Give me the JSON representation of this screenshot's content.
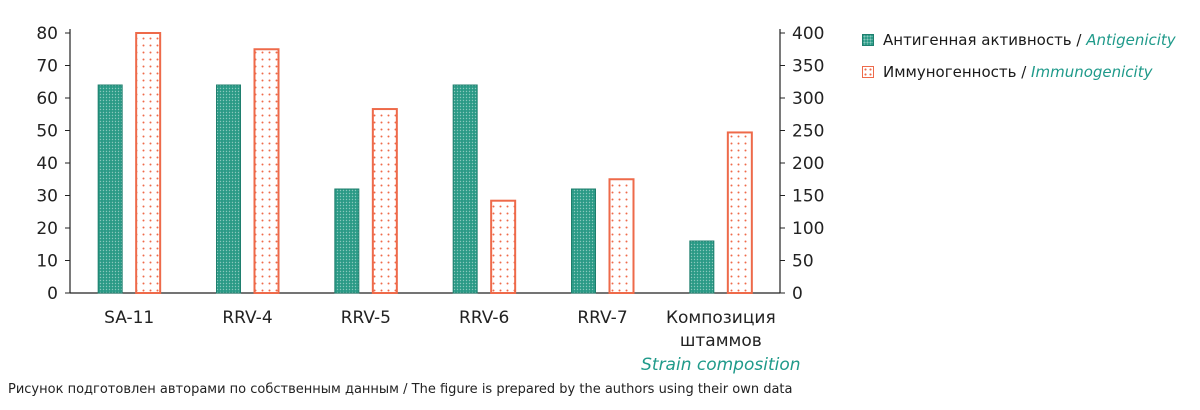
{
  "chart_data": {
    "type": "bar",
    "categories": [
      "SA-11",
      "RRV-4",
      "RRV-5",
      "RRV-6",
      "RRV-7",
      "Композиция штаммов"
    ],
    "category_labels": [
      [
        "SA-11"
      ],
      [
        "RRV-4"
      ],
      [
        "RRV-5"
      ],
      [
        "RRV-6"
      ],
      [
        "RRV-7"
      ],
      [
        "Композиция",
        "штаммов"
      ]
    ],
    "category_english_note": "Strain composition",
    "series": [
      {
        "name": "Антигенная активность / Antigenicity",
        "name_ru": "Антигенная активность",
        "name_en": "Antigenicity",
        "axis": "left",
        "values": [
          64,
          64,
          32,
          64,
          32,
          16
        ],
        "color": "#2a9a86"
      },
      {
        "name": "Иммуногенность / Immunogenicity",
        "name_ru": "Иммуногенность",
        "name_en": "Immunogenicity",
        "axis": "right",
        "values": [
          400,
          375,
          283,
          142,
          175,
          247
        ],
        "color": "#ee6a4a"
      }
    ],
    "y_left": {
      "lim": [
        0,
        80
      ],
      "ticks": [
        0,
        10,
        20,
        30,
        40,
        50,
        60,
        70,
        80
      ]
    },
    "y_right": {
      "lim": [
        0,
        400
      ],
      "ticks": [
        0,
        50,
        100,
        150,
        200,
        250,
        300,
        350,
        400
      ]
    },
    "legend_position": "top-right",
    "grid": false
  },
  "legend": {
    "sep": " / "
  },
  "caption": "Рисунок подготовлен авторами по собственным данным / The figure is prepared by the authors using their own data"
}
